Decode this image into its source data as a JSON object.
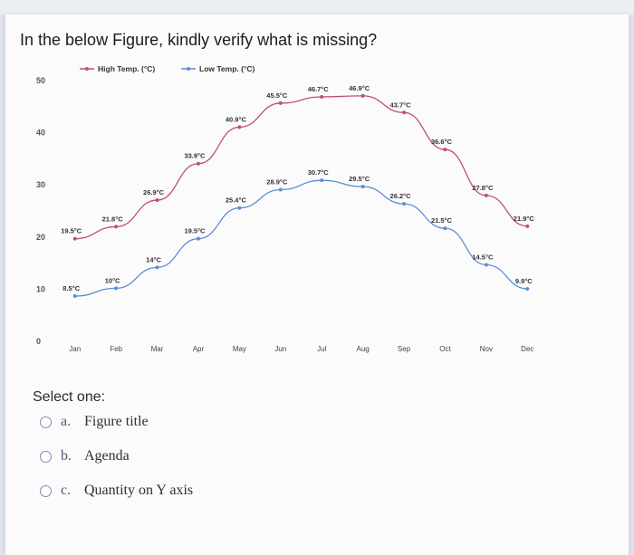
{
  "question": {
    "title": "In the below Figure, kindly verify what is missing?"
  },
  "chart_data": {
    "type": "line",
    "title": "",
    "xlabel": "",
    "ylabel": "",
    "categories": [
      "Jan",
      "Feb",
      "Mar",
      "Apr",
      "May",
      "Jun",
      "Jul",
      "Aug",
      "Sep",
      "Oct",
      "Nov",
      "Dec"
    ],
    "yticks": [
      0,
      10,
      20,
      30,
      40,
      50
    ],
    "ylim": [
      0,
      50
    ],
    "legend_position": "top",
    "series": [
      {
        "name": "High Temp. (°C)",
        "color": "#c0506a",
        "values": [
          19.5,
          21.8,
          26.9,
          33.9,
          40.9,
          45.5,
          46.7,
          46.9,
          43.7,
          36.6,
          27.8,
          21.9
        ],
        "labels": [
          "19.5°C",
          "21.8°C",
          "26.9°C",
          "33.9°C",
          "40.9°C",
          "45.5°C",
          "46.7°C",
          "46.9°C",
          "43.7°C",
          "36.6°C",
          "27.8°C",
          "21.9°C"
        ]
      },
      {
        "name": "Low Temp. (°C)",
        "color": "#5b8fd4",
        "values": [
          8.5,
          10,
          14,
          19.5,
          25.4,
          28.9,
          30.7,
          29.5,
          26.2,
          21.5,
          14.5,
          9.9
        ],
        "labels": [
          "8.5°C",
          "10°C",
          "14°C",
          "19.5°C",
          "25.4°C",
          "28.9°C",
          "30.7°C",
          "29.5°C",
          "26.2°C",
          "21.5°C",
          "14.5°C",
          "9.9°C"
        ]
      }
    ]
  },
  "select": {
    "prompt": "Select one:",
    "options": [
      {
        "letter": "a.",
        "text": "Figure title"
      },
      {
        "letter": "b.",
        "text": "Agenda"
      },
      {
        "letter": "c.",
        "text": "Quantity on Y axis"
      }
    ]
  }
}
